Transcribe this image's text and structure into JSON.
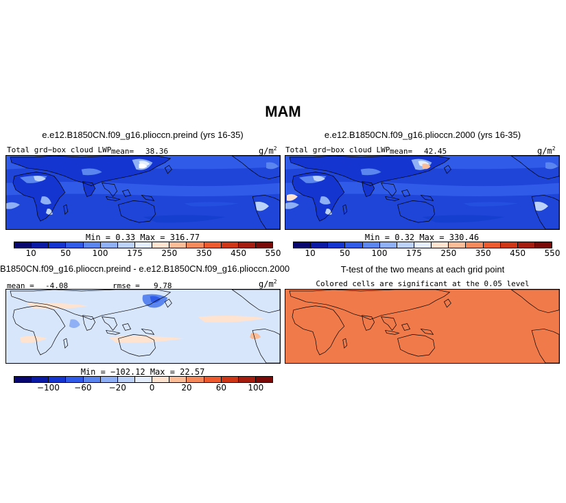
{
  "figure": {
    "title": "MAM"
  },
  "palette": {
    "colorbar": [
      "#08066f",
      "#0a1aa5",
      "#1535d0",
      "#2f5be8",
      "#5b86ef",
      "#8fb0f4",
      "#bcd2f8",
      "#e4eefc",
      "#fde3d0",
      "#fbbc98",
      "#f58a5c",
      "#ec5a2d",
      "#cf3616",
      "#a51d0f",
      "#7a0a08"
    ],
    "ttest_fill": "#f07a4a"
  },
  "panels": {
    "top_left": {
      "title": "e.e12.B1850CN.f09_g16.plioccn.preind (yrs 16-35)",
      "variable": "Total grd−box cloud LWP",
      "mean_label": "mean=",
      "mean_value": "38.36",
      "units": "g/m",
      "units_sup": "2",
      "stats": "Min =    0.33  Max =  316.77",
      "colorbar_ticks": [
        "10",
        "50",
        "100",
        "175",
        "250",
        "350",
        "450",
        "550"
      ]
    },
    "top_right": {
      "title": "e.e12.B1850CN.f09_g16.plioccn.2000 (yrs 16-35)",
      "variable": "Total grd−box cloud LWP",
      "mean_label": "mean=",
      "mean_value": "42.45",
      "units": "g/m",
      "units_sup": "2",
      "stats": "Min =    0.32  Max =  330.46",
      "colorbar_ticks": [
        "10",
        "50",
        "100",
        "175",
        "250",
        "350",
        "450",
        "550"
      ]
    },
    "bottom_left": {
      "title": "B1850CN.f09_g16.plioccn.preind - e.e12.B1850CN.f09_g16.plioccn.2000",
      "mean_label": "mean =",
      "mean_value": "-4.08",
      "rmse_label": "rmse =",
      "rmse_value": "9.78",
      "units": "g/m",
      "units_sup": "2",
      "stats": "Min =  −102.12  Max =   22.57",
      "colorbar_ticks": [
        "−100",
        "−60",
        "−20",
        "0",
        "20",
        "60",
        "100"
      ]
    },
    "bottom_right": {
      "title": "T-test of the two means at each grid point",
      "subtitle": "Colored cells are significant at the 0.05 level"
    }
  }
}
